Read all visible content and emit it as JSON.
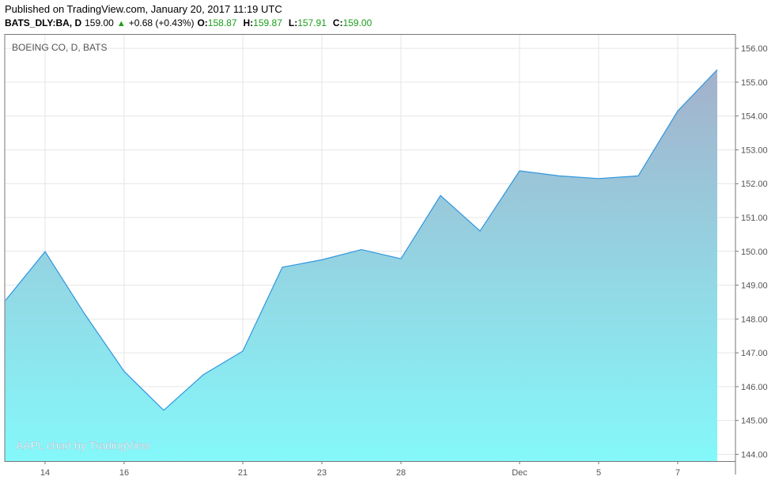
{
  "header": {
    "published": "Published on TradingView.com, January 20, 2017 11:19 UTC",
    "symbol": "BATS_DLY:BA, D",
    "last": "159.00",
    "change": "+0.68 (+0.43%)",
    "open_label": "O:",
    "open": "158.87",
    "high_label": "H:",
    "high": "159.87",
    "low_label": "L:",
    "low": "157.91",
    "close_label": "C:",
    "close": "159.00"
  },
  "chart_title": "BOEING CO, D, BATS",
  "watermark": "AAPL chart by TradingView",
  "colors": {
    "line": "#2f96e0",
    "fill_top": "#a3b1cb",
    "fill_bottom": "#84f8fa",
    "grid": "#e6e6e6",
    "price_up": "#1a9e1a"
  },
  "chart_data": {
    "type": "area",
    "title": "BOEING CO, D, BATS",
    "xlabel": "",
    "ylabel": "",
    "ylim": [
      143.8,
      156.4
    ],
    "grid": true,
    "x_tick_labels": [
      "14",
      "16",
      "21",
      "23",
      "28",
      "Dec",
      "5",
      "7"
    ],
    "y_tick_labels": [
      "156.00",
      "155.00",
      "154.00",
      "153.00",
      "152.00",
      "151.00",
      "150.00",
      "149.00",
      "148.00",
      "147.00",
      "146.00",
      "145.00",
      "144.00"
    ],
    "series": [
      {
        "x": [
          "2016-11-11",
          "2016-11-14",
          "2016-11-15",
          "2016-11-16",
          "2016-11-17",
          "2016-11-18",
          "2016-11-21",
          "2016-11-22",
          "2016-11-23",
          "2016-11-25",
          "2016-11-28",
          "2016-11-29",
          "2016-11-30",
          "2016-12-01",
          "2016-12-02",
          "2016-12-05",
          "2016-12-06",
          "2016-12-07",
          "2016-12-08"
        ],
        "values": [
          148.55,
          149.99,
          148.15,
          146.45,
          145.3,
          146.35,
          147.05,
          149.53,
          149.75,
          150.05,
          149.78,
          151.65,
          150.6,
          152.38,
          152.23,
          152.15,
          152.23,
          154.15,
          155.37
        ]
      }
    ]
  }
}
